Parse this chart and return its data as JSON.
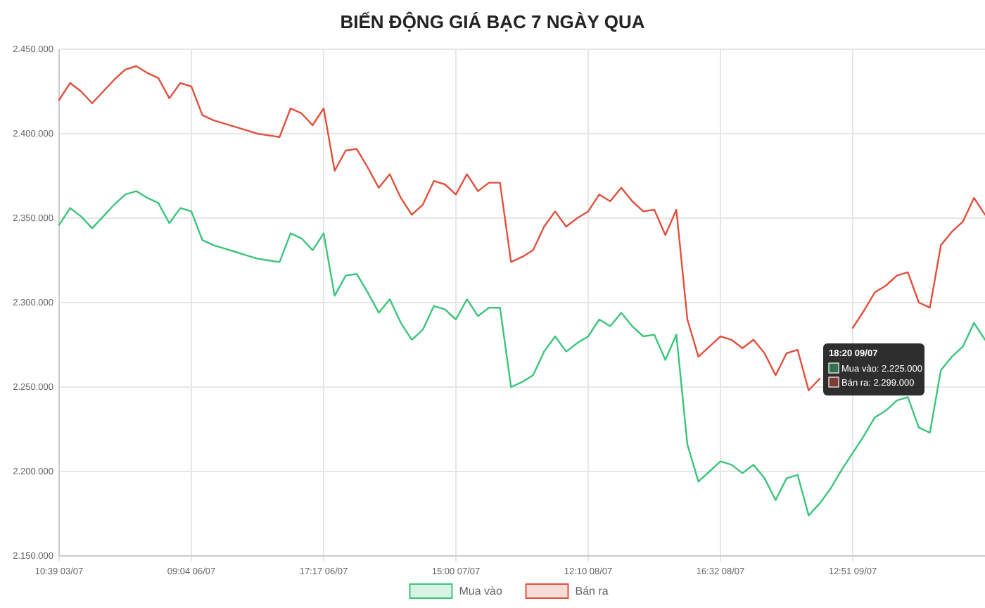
{
  "chart_data": {
    "type": "line",
    "title": "BIẾN ĐỘNG GIÁ BẠC 7 NGÀY QUA",
    "categories": [
      "10:39 03/07",
      null,
      null,
      null,
      null,
      null,
      null,
      null,
      null,
      null,
      null,
      null,
      "09:04 06/07",
      null,
      null,
      null,
      null,
      null,
      null,
      null,
      null,
      null,
      null,
      null,
      "17:17 06/07",
      null,
      null,
      null,
      null,
      null,
      null,
      null,
      null,
      null,
      null,
      null,
      "15:00 07/07",
      null,
      null,
      null,
      null,
      null,
      null,
      null,
      null,
      null,
      null,
      null,
      "12:10 08/07",
      null,
      null,
      null,
      null,
      null,
      null,
      null,
      null,
      null,
      null,
      null,
      "16:32 08/07",
      null,
      null,
      null,
      null,
      null,
      null,
      null,
      null,
      null,
      null,
      null,
      "12:51 09/07",
      null,
      null,
      null,
      null,
      null,
      null,
      null,
      null,
      null,
      null,
      null,
      null
    ],
    "series": [
      {
        "name": "Mua vào",
        "color": "#3cc47c",
        "values": [
          2346000,
          2356000,
          2351000,
          2344000,
          2351000,
          2358000,
          2364000,
          2366000,
          2362000,
          2359000,
          2347000,
          2356000,
          2354000,
          2337000,
          2334000,
          2332000,
          2330000,
          2328000,
          2326000,
          2325000,
          2324000,
          2341000,
          2338000,
          2331000,
          2341000,
          2304000,
          2316000,
          2317000,
          2306000,
          2294000,
          2302000,
          2288000,
          2278000,
          2284000,
          2298000,
          2296000,
          2290000,
          2302000,
          2292000,
          2297000,
          2297000,
          2250000,
          2253000,
          2257000,
          2271000,
          2280000,
          2271000,
          2276000,
          2280000,
          2290000,
          2286000,
          2294000,
          2286000,
          2280000,
          2281000,
          2266000,
          2281000,
          2216000,
          2194000,
          2200000,
          2206000,
          2204000,
          2199000,
          2204000,
          2196000,
          2183000,
          2196000,
          2198000,
          2174000,
          2181000,
          2190000,
          2201000,
          2211000,
          2221000,
          2232000,
          2236000,
          2242000,
          2244000,
          2226000,
          2223000,
          2260000,
          2268000,
          2274000,
          2288000,
          2278000
        ]
      },
      {
        "name": "Bán ra",
        "color": "#e0503c",
        "values": [
          2420000,
          2430000,
          2425000,
          2418000,
          2425000,
          2432000,
          2438000,
          2440000,
          2436000,
          2433000,
          2421000,
          2430000,
          2428000,
          2411000,
          2408000,
          2406000,
          2404000,
          2402000,
          2400000,
          2399000,
          2398000,
          2415000,
          2412000,
          2405000,
          2415000,
          2378000,
          2390000,
          2391000,
          2380000,
          2368000,
          2376000,
          2362000,
          2352000,
          2358000,
          2372000,
          2370000,
          2364000,
          2376000,
          2366000,
          2371000,
          2371000,
          2324000,
          2327000,
          2331000,
          2345000,
          2354000,
          2345000,
          2350000,
          2354000,
          2364000,
          2360000,
          2368000,
          2360000,
          2354000,
          2355000,
          2340000,
          2355000,
          2290000,
          2268000,
          2274000,
          2280000,
          2278000,
          2273000,
          2278000,
          2270000,
          2257000,
          2270000,
          2272000,
          2248000,
          2255000,
          null,
          null,
          2285000,
          2295000,
          2306000,
          2310000,
          2316000,
          2318000,
          2300000,
          2297000,
          2334000,
          2342000,
          2348000,
          2362000,
          2352000
        ]
      }
    ],
    "ylim": [
      2150000,
      2450000
    ],
    "yticks": [
      {
        "value": 2150000,
        "label": "2.150.000"
      },
      {
        "value": 2200000,
        "label": "2.200.000"
      },
      {
        "value": 2250000,
        "label": "2.250.000"
      },
      {
        "value": 2300000,
        "label": "2.300.000"
      },
      {
        "value": 2350000,
        "label": "2.350.000"
      },
      {
        "value": 2400000,
        "label": "2.400.000"
      },
      {
        "value": 2450000,
        "label": "2.450.000"
      }
    ],
    "annotations": [
      "18:20 09/07",
      "Mua vào: 2.225.000",
      "Bán ra: 2.299.000"
    ],
    "grid": true,
    "legend": "bottom",
    "marker": "none",
    "line_style": "solid"
  }
}
